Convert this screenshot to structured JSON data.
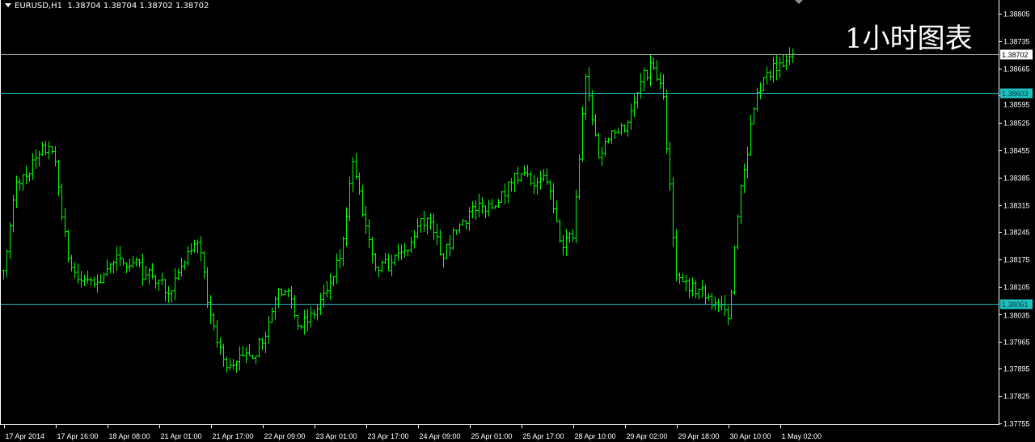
{
  "header": {
    "symbol_timeframe": "EURUSD,H1",
    "ohlc": "1.38704 1.38704 1.38702 1.38702"
  },
  "overlay_label": "1小时图表",
  "colors": {
    "background": "#000000",
    "bars": "#00ff00",
    "axis": "#ffffff",
    "grid_gray": "#a0a0a0",
    "level_cyan": "#20c0c0"
  },
  "chart_data": {
    "type": "ohlc-bar",
    "symbol": "EURUSD",
    "timeframe": "H1",
    "ylim": [
      1.37755,
      1.38805
    ],
    "y_ticks": [
      "1.38805",
      "1.38735",
      "1.38665",
      "1.38595",
      "1.38525",
      "1.38455",
      "1.38385",
      "1.38315",
      "1.38245",
      "1.38175",
      "1.38105",
      "1.38035",
      "1.37965",
      "1.37895",
      "1.37825",
      "1.37755"
    ],
    "x_ticks": [
      "17 Apr 2014",
      "17 Apr 16:00",
      "18 Apr 08:00",
      "21 Apr 01:00",
      "21 Apr 17:00",
      "22 Apr 09:00",
      "23 Apr 01:00",
      "23 Apr 17:00",
      "24 Apr 09:00",
      "25 Apr 01:00",
      "25 Apr 17:00",
      "28 Apr 10:00",
      "29 Apr 02:00",
      "29 Apr 18:00",
      "30 Apr 10:00",
      "1 May 02:00"
    ],
    "close_every_4_bars": [
      1.38147,
      1.38374,
      1.38395,
      1.38468,
      1.38426,
      1.38178,
      1.3812,
      1.38112,
      1.38151,
      1.38178,
      1.38167,
      1.38136,
      1.38122,
      1.38095,
      1.38167,
      1.38219,
      1.38033,
      1.37919,
      1.37913,
      1.37929,
      1.3796,
      1.38074,
      1.38095,
      1.38002,
      1.38033,
      1.38095,
      1.38178,
      1.38426,
      1.38261,
      1.38147,
      1.38167,
      1.38199,
      1.38261,
      1.38271,
      1.38178,
      1.3825,
      1.38298,
      1.38312,
      1.38312,
      1.38374,
      1.38395,
      1.38364,
      1.38374,
      1.38223,
      1.3823,
      1.38644,
      1.38437,
      1.38505,
      1.38505,
      1.38602,
      1.38679,
      1.38592,
      1.38136,
      1.38095,
      1.38103,
      1.38064,
      1.38023,
      1.38364,
      1.38561,
      1.38654,
      1.38679,
      1.38702
    ],
    "horizontal_lines": [
      {
        "price": "1.38702",
        "label": "1.38702",
        "style": "current-bid",
        "color": "#a0a0a0"
      },
      {
        "price": "1.38603",
        "label": "1.38603",
        "style": "level",
        "color": "#20c0c0"
      },
      {
        "price": "1.38061",
        "label": "1.38061",
        "style": "level",
        "color": "#20c0c0"
      }
    ]
  }
}
